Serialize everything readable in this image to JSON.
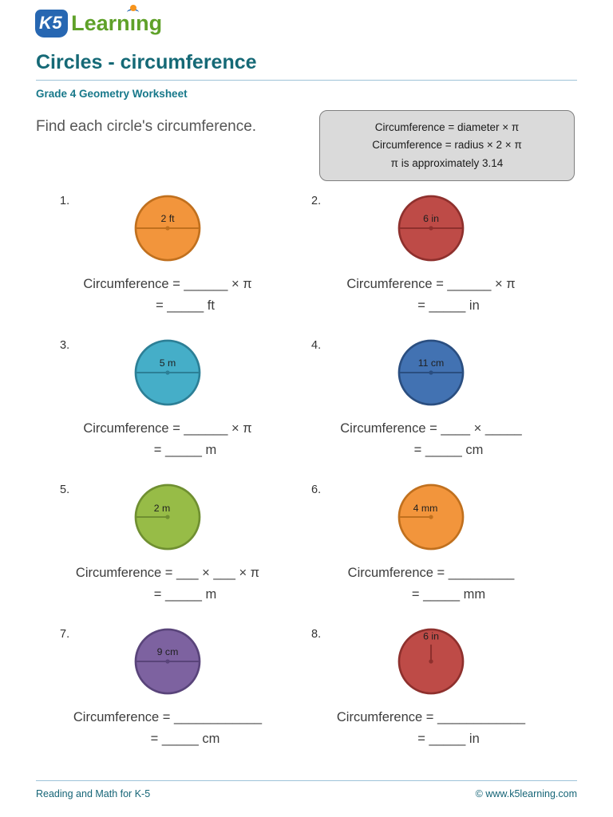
{
  "logo": {
    "k5": "K5",
    "learning_parts": [
      "Learn",
      "ı",
      "ng"
    ]
  },
  "header": {
    "title": "Circles - circumference",
    "subtitle": "Grade 4 Geometry Worksheet",
    "instruction": "Find each circle's circumference."
  },
  "formula_box": {
    "line1": "Circumference = diameter × π",
    "line2": "Circumference = radius × 2 × π",
    "line3": "π is approximately 3.14"
  },
  "problems": [
    {
      "number": "1.",
      "label": "2 ft",
      "line_type": "diameter",
      "fill": "#F2953C",
      "stroke": "#C0701E",
      "eq1": "Circumference = ______ × π",
      "eq2": "= _____ ft"
    },
    {
      "number": "2.",
      "label": "6 in",
      "line_type": "diameter",
      "fill": "#BE4B47",
      "stroke": "#8E302D",
      "eq1": "Circumference = ______ × π",
      "eq2": "= _____ in"
    },
    {
      "number": "3.",
      "label": "5 m",
      "line_type": "diameter",
      "fill": "#45AEC8",
      "stroke": "#2C7F96",
      "eq1": "Circumference = ______ × π",
      "eq2": "= _____ m"
    },
    {
      "number": "4.",
      "label": "11 cm",
      "line_type": "diameter",
      "fill": "#4272B2",
      "stroke": "#2A4E80",
      "eq1": "Circumference = ____ × _____",
      "eq2": "= _____ cm"
    },
    {
      "number": "5.",
      "label": "2 m",
      "line_type": "radius-left",
      "fill": "#97BC47",
      "stroke": "#6F8F31",
      "eq1": "Circumference = ___ × ___ × π",
      "eq2": "= _____ m"
    },
    {
      "number": "6.",
      "label": "4 mm",
      "line_type": "radius-left",
      "fill": "#F2953C",
      "stroke": "#C0701E",
      "eq1": "Circumference = _________",
      "eq2": "= _____ mm"
    },
    {
      "number": "7.",
      "label": "9 cm",
      "line_type": "diameter",
      "fill": "#7D62A0",
      "stroke": "#59447A",
      "eq1": "Circumference = ____________",
      "eq2": "= _____ cm"
    },
    {
      "number": "8.",
      "label": "6 in",
      "line_type": "radius-up",
      "fill": "#BE4B47",
      "stroke": "#8E302D",
      "eq1": "Circumference = ____________",
      "eq2": "= _____ in"
    }
  ],
  "footer": {
    "left": "Reading and Math for K-5",
    "right": "© www.k5learning.com"
  },
  "theme": {
    "title_color": "#156976",
    "subtitle_color": "#17788A",
    "rule_color": "#9EC3D8",
    "formula_box_bg": "#DADADA"
  }
}
